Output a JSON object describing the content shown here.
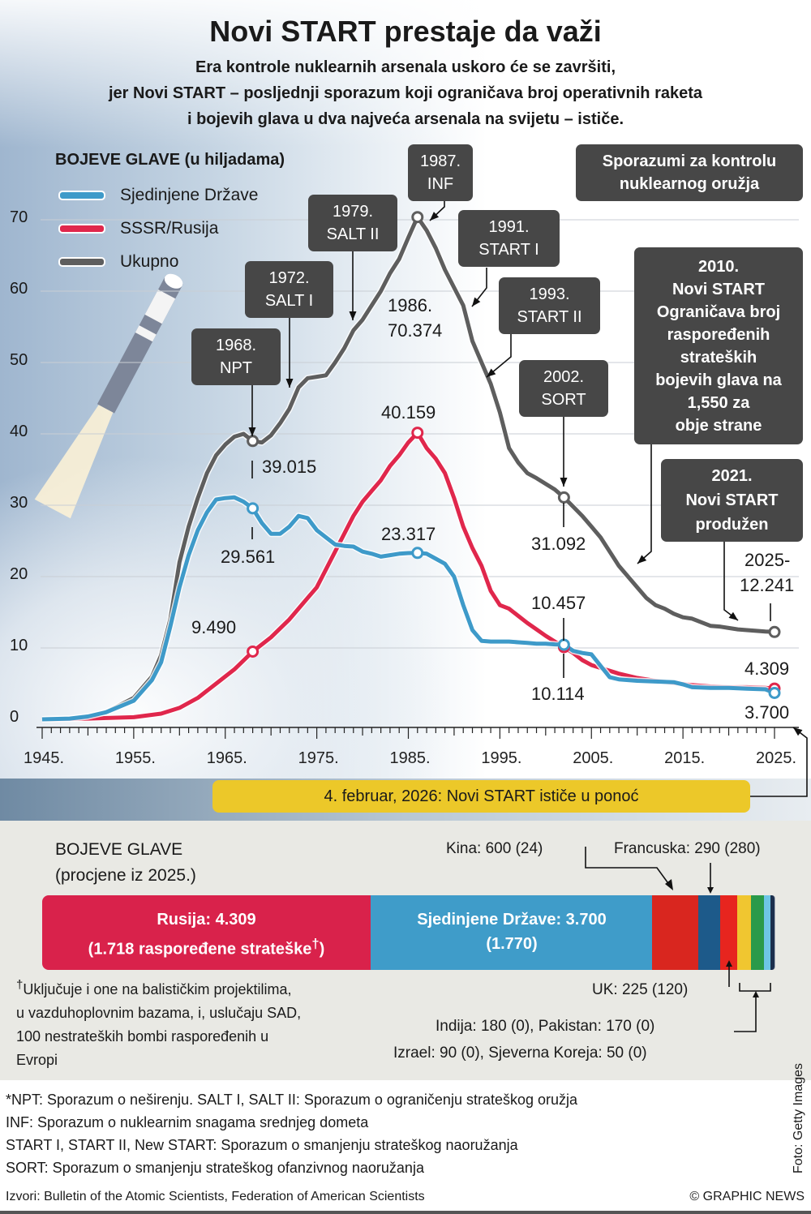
{
  "title": "Novi START prestaje da važi",
  "subtitle_lines": [
    "Era kontrole nuklearnih arsenala uskoro će se završiti,",
    "jer Novi START – posljednji sporazum koji ograničava broj operativnih raketa",
    "i bojevih glava u dva najveća arsenala na svijetu – ističe."
  ],
  "chart_data": {
    "type": "line",
    "title": "BOJEVE GLAVE (u hiljadama)",
    "xlim": [
      1945,
      2025
    ],
    "ylim": [
      0,
      70
    ],
    "x_tick_labels": [
      "1945.",
      "1955.",
      "1965.",
      "1975.",
      "1985.",
      "1995.",
      "2005.",
      "2015.",
      "2025."
    ],
    "y_tick_labels": [
      "0",
      "10",
      "20",
      "30",
      "40",
      "50",
      "60",
      "70"
    ],
    "grid": true,
    "legend_placement": "top-left",
    "series": [
      {
        "name": "Ukupno",
        "color": "#5e5e5e",
        "points": [
          [
            1945,
            0
          ],
          [
            1948,
            0.1
          ],
          [
            1950,
            0.4
          ],
          [
            1952,
            1
          ],
          [
            1955,
            3
          ],
          [
            1957,
            6
          ],
          [
            1958,
            9
          ],
          [
            1959,
            14
          ],
          [
            1960,
            22
          ],
          [
            1961,
            27
          ],
          [
            1962,
            31
          ],
          [
            1963,
            34.5
          ],
          [
            1964,
            37
          ],
          [
            1965,
            38.5
          ],
          [
            1966,
            39.6
          ],
          [
            1967,
            40
          ],
          [
            1968,
            39.0
          ],
          [
            1969,
            38.8
          ],
          [
            1970,
            39.8
          ],
          [
            1971,
            41.5
          ],
          [
            1972,
            43.5
          ],
          [
            1973,
            46.5
          ],
          [
            1974,
            47.8
          ],
          [
            1975,
            48
          ],
          [
            1976,
            48.2
          ],
          [
            1977,
            50
          ],
          [
            1978,
            52
          ],
          [
            1979,
            54.5
          ],
          [
            1980,
            56
          ],
          [
            1981,
            58
          ],
          [
            1982,
            60
          ],
          [
            1983,
            62.5
          ],
          [
            1984,
            64.5
          ],
          [
            1985,
            67.5
          ],
          [
            1986,
            70.374
          ],
          [
            1987,
            68.5
          ],
          [
            1988,
            66
          ],
          [
            1989,
            63
          ],
          [
            1990,
            60.5
          ],
          [
            1991,
            58
          ],
          [
            1992,
            53
          ],
          [
            1993,
            50
          ],
          [
            1994,
            47
          ],
          [
            1995,
            43
          ],
          [
            1996,
            38
          ],
          [
            1997,
            36
          ],
          [
            1998,
            34.5
          ],
          [
            1999,
            33.8
          ],
          [
            2000,
            33
          ],
          [
            2001,
            32.2
          ],
          [
            2002,
            31.092
          ],
          [
            2003,
            29.8
          ],
          [
            2004,
            28.5
          ],
          [
            2005,
            27
          ],
          [
            2006,
            25.5
          ],
          [
            2007,
            23.5
          ],
          [
            2008,
            21.5
          ],
          [
            2009,
            20
          ],
          [
            2010,
            18.5
          ],
          [
            2011,
            17
          ],
          [
            2012,
            16
          ],
          [
            2013,
            15.5
          ],
          [
            2014,
            14.8
          ],
          [
            2015,
            14.3
          ],
          [
            2016,
            14.1
          ],
          [
            2017,
            13.6
          ],
          [
            2018,
            13.1
          ],
          [
            2019,
            13
          ],
          [
            2020,
            12.8
          ],
          [
            2021,
            12.6
          ],
          [
            2022,
            12.5
          ],
          [
            2023,
            12.4
          ],
          [
            2024,
            12.3
          ],
          [
            2025,
            12.241
          ]
        ],
        "markers": [
          1968,
          1986,
          2002,
          2025
        ]
      },
      {
        "name": "SSSR/Rusija",
        "color": "#e0274c",
        "points": [
          [
            1945,
            0
          ],
          [
            1950,
            0.1
          ],
          [
            1955,
            0.3
          ],
          [
            1958,
            0.8
          ],
          [
            1960,
            1.6
          ],
          [
            1962,
            3
          ],
          [
            1964,
            5
          ],
          [
            1966,
            7
          ],
          [
            1968,
            9.49
          ],
          [
            1970,
            11.5
          ],
          [
            1972,
            14
          ],
          [
            1974,
            17
          ],
          [
            1975,
            18.5
          ],
          [
            1976,
            21
          ],
          [
            1977,
            23.5
          ],
          [
            1978,
            26
          ],
          [
            1979,
            28.5
          ],
          [
            1980,
            30.5
          ],
          [
            1981,
            32
          ],
          [
            1982,
            33.5
          ],
          [
            1983,
            35.5
          ],
          [
            1984,
            37
          ],
          [
            1985,
            38.8
          ],
          [
            1986,
            40.159
          ],
          [
            1987,
            38
          ],
          [
            1988,
            36.5
          ],
          [
            1989,
            34.5
          ],
          [
            1990,
            31
          ],
          [
            1991,
            27
          ],
          [
            1992,
            24
          ],
          [
            1993,
            21.5
          ],
          [
            1994,
            18
          ],
          [
            1995,
            16
          ],
          [
            1996,
            15.5
          ],
          [
            1997,
            14.5
          ],
          [
            1998,
            13.5
          ],
          [
            1999,
            12.6
          ],
          [
            2000,
            11.7
          ],
          [
            2001,
            10.9
          ],
          [
            2002,
            10.114
          ],
          [
            2003,
            9.3
          ],
          [
            2004,
            8.3
          ],
          [
            2005,
            7.6
          ],
          [
            2006,
            7.2
          ],
          [
            2008,
            6.4
          ],
          [
            2010,
            5.8
          ],
          [
            2012,
            5.4
          ],
          [
            2014,
            5.1
          ],
          [
            2016,
            4.8
          ],
          [
            2018,
            4.6
          ],
          [
            2020,
            4.5
          ],
          [
            2022,
            4.5
          ],
          [
            2024,
            4.4
          ],
          [
            2025,
            4.309
          ]
        ],
        "markers": [
          1968,
          1986,
          2002,
          2025
        ]
      },
      {
        "name": "Sjedinjene Države",
        "color": "#3e9ac9",
        "points": [
          [
            1945,
            0
          ],
          [
            1948,
            0.1
          ],
          [
            1950,
            0.4
          ],
          [
            1952,
            1
          ],
          [
            1955,
            2.6
          ],
          [
            1957,
            5.5
          ],
          [
            1958,
            8
          ],
          [
            1959,
            13
          ],
          [
            1960,
            18.5
          ],
          [
            1961,
            23
          ],
          [
            1962,
            26.5
          ],
          [
            1963,
            29
          ],
          [
            1964,
            30.8
          ],
          [
            1965,
            31
          ],
          [
            1966,
            31.1
          ],
          [
            1967,
            30.5
          ],
          [
            1968,
            29.561
          ],
          [
            1969,
            27.5
          ],
          [
            1970,
            26
          ],
          [
            1971,
            26
          ],
          [
            1972,
            27
          ],
          [
            1973,
            28.5
          ],
          [
            1974,
            28.2
          ],
          [
            1975,
            26.5
          ],
          [
            1976,
            25.5
          ],
          [
            1977,
            24.5
          ],
          [
            1978,
            24.3
          ],
          [
            1979,
            24.2
          ],
          [
            1980,
            23.5
          ],
          [
            1981,
            23.2
          ],
          [
            1982,
            22.8
          ],
          [
            1983,
            23
          ],
          [
            1984,
            23.2
          ],
          [
            1985,
            23.3
          ],
          [
            1986,
            23.317
          ],
          [
            1987,
            23.2
          ],
          [
            1988,
            22.5
          ],
          [
            1989,
            21.8
          ],
          [
            1990,
            20
          ],
          [
            1991,
            16
          ],
          [
            1992,
            12.5
          ],
          [
            1993,
            11
          ],
          [
            1994,
            10.9
          ],
          [
            1995,
            10.9
          ],
          [
            1996,
            10.9
          ],
          [
            1997,
            10.8
          ],
          [
            1998,
            10.7
          ],
          [
            1999,
            10.6
          ],
          [
            2000,
            10.6
          ],
          [
            2001,
            10.5
          ],
          [
            2002,
            10.457
          ],
          [
            2003,
            9.6
          ],
          [
            2004,
            9.3
          ],
          [
            2005,
            9.1
          ],
          [
            2006,
            7.5
          ],
          [
            2007,
            5.9
          ],
          [
            2008,
            5.6
          ],
          [
            2010,
            5.4
          ],
          [
            2012,
            5.3
          ],
          [
            2014,
            5.2
          ],
          [
            2015,
            4.9
          ],
          [
            2016,
            4.5
          ],
          [
            2018,
            4.4
          ],
          [
            2020,
            4.4
          ],
          [
            2022,
            4.3
          ],
          [
            2024,
            4.2
          ],
          [
            2025,
            3.7
          ]
        ],
        "markers": [
          1968,
          1986,
          2002,
          2025
        ]
      }
    ],
    "data_labels": {
      "total_1968": "39.015",
      "us_1968": "29.561",
      "ru_1968": "9.490",
      "ru_1986": "40.159",
      "us_1986": "23.317",
      "total_1986_year": "1986.",
      "total_1986": "70.374",
      "total_2002": "31.092",
      "us_2002": "10.457",
      "ru_2002": "10.114",
      "total_2025_year": "2025-",
      "total_2025": "12.241",
      "ru_2025": "4.309",
      "us_2025": "3.700"
    }
  },
  "callouts": {
    "header": "Sporazumi za kontrolu nuklearnog oružja",
    "npt": [
      "1968.",
      "NPT"
    ],
    "salt1": [
      "1972.",
      "SALT I"
    ],
    "salt2": [
      "1979.",
      "SALT II"
    ],
    "inf": [
      "1987.",
      "INF"
    ],
    "start1": [
      "1991.",
      "START I"
    ],
    "start2": [
      "1993.",
      "START II"
    ],
    "sort": [
      "2002.",
      "SORT"
    ],
    "newstart": [
      "2010.",
      "Novi START",
      "Ograničava broj",
      "raspoređenih",
      "strateških",
      "bojevih glava na",
      "1,550  za",
      "obje strane"
    ],
    "extended": [
      "2021.",
      "Novi START",
      "produžen"
    ],
    "expiry": "4. februar, 2026: Novi START ističe u ponoć"
  },
  "bottom": {
    "title": "BOJEVE GLAVE",
    "subtitle": "(procjene iz 2025.)",
    "segments": [
      {
        "name": "Rusija",
        "value": 4309,
        "color": "#d9224b",
        "label1": "Rusija: 4.309",
        "label2": "(1.718 raspoređene strateške",
        "sup": "†",
        "label2_end": ")"
      },
      {
        "name": "Sjedinjene Države",
        "value": 3700,
        "color": "#3f9cc9",
        "label1": "Sjedinjene Države: 3.700",
        "label2": "(1.770)"
      },
      {
        "name": "Kina",
        "value": 600,
        "color": "#d9261f"
      },
      {
        "name": "Francuska",
        "value": 290,
        "color": "#1d5a8a"
      },
      {
        "name": "UK",
        "value": 225,
        "color": "#e7251f"
      },
      {
        "name": "Indija",
        "value": 180,
        "color": "#f0c630"
      },
      {
        "name": "Pakistan",
        "value": 170,
        "color": "#2a9a4a"
      },
      {
        "name": "Izrael",
        "value": 90,
        "color": "#6ec6e6"
      },
      {
        "name": "Sjeverna Koreja",
        "value": 50,
        "color": "#1c2f4d"
      }
    ],
    "labels": {
      "china": "Kina: 600 (24)",
      "france": "Francuska: 290 (280)",
      "uk": "UK: 225 (120)",
      "india_pakistan": "Indija: 180 (0), Pakistan: 170 (0)",
      "israel_nk": "Izrael: 90 (0), Sjeverna Koreja: 50 (0)"
    },
    "footnote_mark": "†",
    "footnote": [
      "Uključuje i one na balističkim projektilima,",
      "u vazduhoplovnim bazama, i, uslučaju SAD,",
      "100 nestrateških bombi raspoređenih u",
      "Evropi"
    ]
  },
  "definitions": [
    "*NPT: Sporazum o neširenju. SALT I, SALT II: Sporazum o ograničenju strateškog oružja",
    "INF: Sporazum o nuklearnim snagama srednjeg dometa",
    "START I, START II, New START: Sporazum o smanjenju strateškog naoružanja",
    "SORT: Sporazum o smanjenju strateškog ofanzivnog naoružanja"
  ],
  "sources": "Izvori: Bulletin of the Atomic Scientists, Federation of American Scientists",
  "credit": "© GRAPHIC NEWS",
  "photo_credit": "Foto: Getty Images"
}
